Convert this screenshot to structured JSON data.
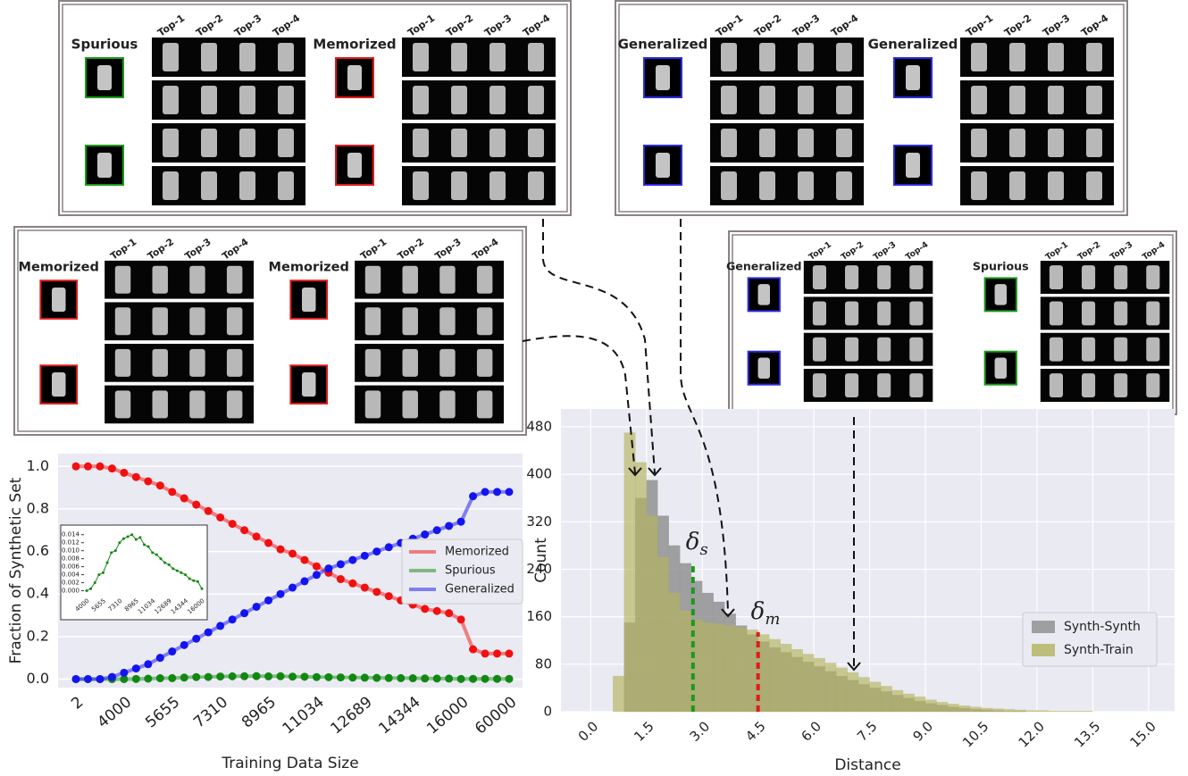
{
  "panels": [
    {
      "groups": [
        {
          "label": "Spurious",
          "color": "#1a9a1a",
          "tops": [
            "Top-1",
            "Top-2",
            "Top-3",
            "Top-4"
          ]
        },
        {
          "label": "Memorized",
          "color": "#e01b1b",
          "tops": [
            "Top-1",
            "Top-2",
            "Top-3",
            "Top-4"
          ]
        }
      ]
    },
    {
      "groups": [
        {
          "label": "Generalized",
          "color": "#2b2be0",
          "tops": [
            "Top-1",
            "Top-2",
            "Top-3",
            "Top-4"
          ]
        },
        {
          "label": "Generalized",
          "color": "#2b2be0",
          "tops": [
            "Top-1",
            "Top-2",
            "Top-3",
            "Top-4"
          ]
        }
      ]
    },
    {
      "groups": [
        {
          "label": "Memorized",
          "color": "#e01b1b",
          "tops": [
            "Top-1",
            "Top-2",
            "Top-3",
            "Top-4"
          ]
        },
        {
          "label": "Memorized",
          "color": "#e01b1b",
          "tops": [
            "Top-1",
            "Top-2",
            "Top-3",
            "Top-4"
          ]
        }
      ]
    },
    {
      "groups": [
        {
          "label": "Generalized",
          "color": "#2b2be0",
          "tops": [
            "Top-1",
            "Top-2",
            "Top-3",
            "Top-4"
          ]
        },
        {
          "label": "Spurious",
          "color": "#1a9a1a",
          "tops": [
            "Top-1",
            "Top-2",
            "Top-3",
            "Top-4"
          ]
        }
      ]
    }
  ],
  "chart_data": [
    {
      "type": "line",
      "x_label": "Training Data Size",
      "y_label": "Fraction of Synthetic Set",
      "categories": [
        "2",
        null,
        null,
        null,
        "4000",
        null,
        null,
        null,
        "5655",
        null,
        null,
        null,
        "7310",
        null,
        null,
        null,
        "8965",
        null,
        null,
        null,
        "11034",
        null,
        null,
        null,
        "12689",
        null,
        null,
        null,
        "14344",
        null,
        null,
        null,
        "16000",
        null,
        null,
        null,
        "60000"
      ],
      "series": [
        {
          "name": "Memorized",
          "color": "#f01010",
          "values": [
            1,
            1,
            1,
            0.99,
            0.97,
            0.95,
            0.93,
            0.91,
            0.88,
            0.85,
            0.82,
            0.79,
            0.76,
            0.73,
            0.7,
            0.67,
            0.64,
            0.61,
            0.59,
            0.56,
            0.53,
            0.5,
            0.47,
            0.45,
            0.43,
            0.41,
            0.39,
            0.37,
            0.35,
            0.33,
            0.32,
            0.31,
            0.28,
            0.14,
            0.12,
            0.12,
            0.12
          ]
        },
        {
          "name": "Spurious",
          "color": "#118811",
          "values": [
            0,
            0,
            0,
            0,
            0,
            0.0005,
            0.002,
            0.004,
            0.0045,
            0.007,
            0.0095,
            0.01,
            0.012,
            0.013,
            0.0135,
            0.014,
            0.0128,
            0.0133,
            0.0115,
            0.011,
            0.0095,
            0.009,
            0.008,
            0.007,
            0.0065,
            0.0055,
            0.005,
            0.0045,
            0.004,
            0.003,
            0.0025,
            0.0023,
            0.0005,
            0.001,
            0.001,
            0.001,
            0.001
          ]
        },
        {
          "name": "Generalized",
          "color": "#1414f0",
          "values": [
            0,
            0,
            0,
            0.01,
            0.03,
            0.05,
            0.07,
            0.1,
            0.13,
            0.16,
            0.19,
            0.22,
            0.25,
            0.28,
            0.31,
            0.34,
            0.37,
            0.4,
            0.43,
            0.46,
            0.49,
            0.52,
            0.54,
            0.56,
            0.58,
            0.6,
            0.62,
            0.64,
            0.66,
            0.68,
            0.7,
            0.72,
            0.74,
            0.86,
            0.88,
            0.88,
            0.88
          ]
        }
      ],
      "ylim": [
        -0.04,
        1.06
      ],
      "yticks": [
        {
          "value": 0,
          "label": "0.0"
        },
        0.2,
        0.4,
        0.6,
        0.8,
        {
          "value": 1,
          "label": "1.0"
        }
      ],
      "grid": true,
      "legend": "center right"
    },
    {
      "type": "line",
      "categories": [
        "4000",
        null,
        null,
        null,
        "5655",
        null,
        null,
        null,
        "7310",
        null,
        null,
        null,
        "8965",
        null,
        null,
        null,
        "11034",
        null,
        null,
        null,
        "12689",
        null,
        null,
        null,
        "14344",
        null,
        null,
        null,
        "16000"
      ],
      "series": [
        {
          "color": "#118811",
          "values": [
            0,
            0.0005,
            0.002,
            0.004,
            0.0045,
            0.007,
            0.0095,
            0.01,
            0.012,
            0.013,
            0.0135,
            0.014,
            0.0128,
            0.0133,
            0.0115,
            0.011,
            0.0095,
            0.009,
            0.008,
            0.007,
            0.0065,
            0.0055,
            0.005,
            0.0045,
            0.004,
            0.003,
            0.0025,
            0.0023,
            0.0005
          ]
        }
      ],
      "ylim": [
        -0.001,
        0.0155
      ],
      "yticks": [
        {
          "value": 0,
          "label": "0.000"
        },
        {
          "value": 0.002,
          "label": "0.002"
        },
        {
          "value": 0.004,
          "label": "0.004"
        },
        {
          "value": 0.006,
          "label": "0.006"
        },
        {
          "value": 0.008,
          "label": "0.008"
        },
        {
          "value": 0.01,
          "label": "0.010"
        },
        {
          "value": 0.012,
          "label": "0.012"
        },
        {
          "value": 0.014,
          "label": "0.014"
        }
      ],
      "grid": false
    },
    {
      "type": "histogram",
      "x_label": "Distance",
      "y_label": "Count",
      "bins": [
        0.6,
        0.9,
        1.2,
        1.5,
        1.8,
        2.1,
        2.4,
        2.7,
        3.0,
        3.3,
        3.6,
        3.9,
        4.2,
        4.5,
        4.8,
        5.1,
        5.4,
        5.7,
        6.0,
        6.3,
        6.6,
        6.9,
        7.2,
        7.5,
        7.8,
        8.1,
        8.4,
        8.7,
        9.0,
        9.3,
        9.6,
        9.9,
        10.2,
        10.5,
        10.8,
        11.1,
        11.4,
        11.7,
        12.0,
        12.3,
        12.6,
        12.9,
        13.2,
        13.5,
        13.8,
        14.1,
        14.4,
        14.7,
        15.0,
        15.3,
        15.6
      ],
      "series": [
        {
          "name": "Synth-Synth",
          "color": "#8c8c8c",
          "values": [
            0,
            150,
            360,
            390,
            330,
            280,
            250,
            220,
            200,
            185,
            165,
            145,
            130,
            118,
            108,
            100,
            92,
            84,
            76,
            68,
            60,
            53,
            46,
            40,
            34,
            28,
            23,
            18,
            14,
            11,
            8,
            6,
            4,
            3,
            2,
            1,
            1,
            0,
            0,
            0,
            0,
            0,
            0,
            0,
            0,
            0,
            0,
            0,
            0,
            0
          ]
        },
        {
          "name": "Synth-Train",
          "color": "#b3b35c",
          "values": [
            60,
            470,
            420,
            330,
            260,
            200,
            170,
            155,
            150,
            148,
            145,
            142,
            138,
            130,
            122,
            114,
            105,
            97,
            90,
            82,
            74,
            66,
            58,
            50,
            43,
            36,
            30,
            25,
            20,
            16,
            13,
            10,
            8,
            6,
            5,
            4,
            3,
            2,
            2,
            1,
            1,
            1,
            1,
            0,
            0,
            0,
            0,
            0,
            0,
            0
          ]
        }
      ],
      "xlim": [
        -0.8,
        15.7
      ],
      "xticks": [
        {
          "value": 0,
          "label": "0.0"
        },
        1.5,
        {
          "value": 3,
          "label": "3.0"
        },
        4.5,
        {
          "value": 6,
          "label": "6.0"
        },
        7.5,
        {
          "value": 9,
          "label": "9.0"
        },
        10.5,
        {
          "value": 12,
          "label": "12.0"
        },
        13.5,
        {
          "value": 15,
          "label": "15.0"
        }
      ],
      "ylim": [
        0,
        510
      ],
      "yticks": [
        0,
        80,
        160,
        240,
        320,
        400,
        480
      ],
      "grid": true,
      "legend": "center right",
      "annotations": [
        {
          "text": "δ",
          "subscript": "s",
          "x": 2.75,
          "y": 251,
          "color": "#1a9a1a"
        },
        {
          "text": "δ",
          "subscript": "m",
          "x": 4.5,
          "y": 134,
          "color": "#e01b1b"
        }
      ]
    }
  ]
}
